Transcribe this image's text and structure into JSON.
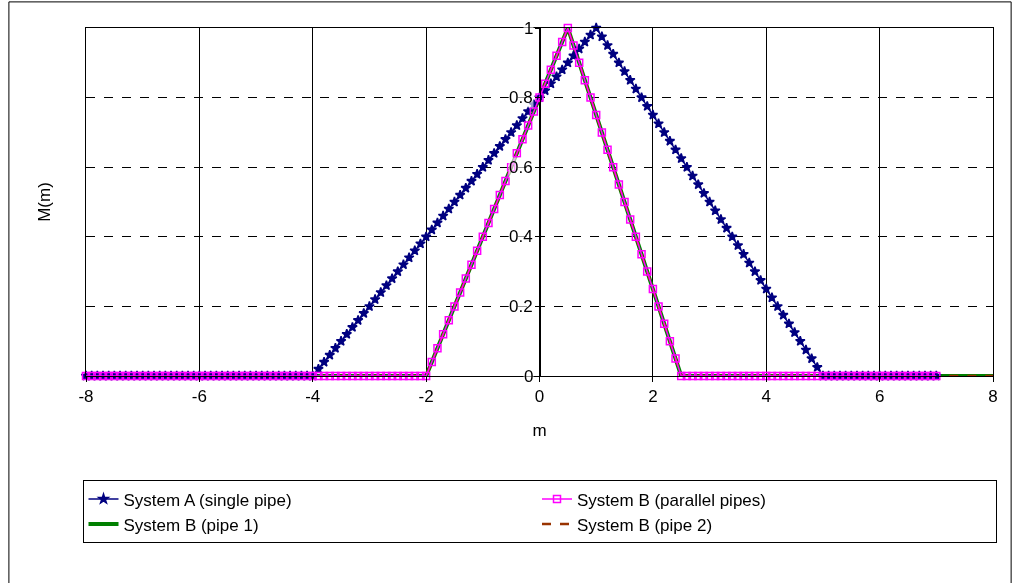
{
  "chart_data": {
    "type": "line",
    "xlabel": "m",
    "ylabel": "M(m)",
    "xlim": [
      -8,
      8
    ],
    "xticks": [
      -8,
      -6,
      -4,
      -2,
      0,
      2,
      4,
      6,
      8
    ],
    "ylim": [
      0,
      1
    ],
    "yticks": [
      0,
      0.2,
      0.4,
      0.6,
      0.8,
      1
    ],
    "grid": true,
    "legend": "bottom",
    "x": [
      -8,
      -7.9,
      -7.8,
      -7.7,
      -7.6,
      -7.5,
      -7.4,
      -7.3,
      -7.2,
      -7.1,
      -7,
      -6.9,
      -6.8,
      -6.7,
      -6.6,
      -6.5,
      -6.4,
      -6.3,
      -6.2,
      -6.1,
      -6,
      -5.9,
      -5.8,
      -5.7,
      -5.6,
      -5.5,
      -5.4,
      -5.3,
      -5.2,
      -5.1,
      -5,
      -4.9,
      -4.8,
      -4.7,
      -4.6,
      -4.5,
      -4.4,
      -4.3,
      -4.2,
      -4.1,
      -4,
      -3.9,
      -3.8,
      -3.7,
      -3.6,
      -3.5,
      -3.4,
      -3.3,
      -3.2,
      -3.1,
      -3,
      -2.9,
      -2.8,
      -2.7,
      -2.6,
      -2.5,
      -2.4,
      -2.3,
      -2.2,
      -2.1,
      -2,
      -1.9,
      -1.8,
      -1.7,
      -1.6,
      -1.5,
      -1.4,
      -1.3,
      -1.2,
      -1.1,
      -1,
      -0.9,
      -0.8,
      -0.7,
      -0.6,
      -0.5,
      -0.4,
      -0.3,
      -0.2,
      -0.1,
      0,
      0.1,
      0.2,
      0.3,
      0.4,
      0.5,
      0.6,
      0.7,
      0.8,
      0.9,
      1,
      1.1,
      1.2,
      1.3,
      1.4,
      1.5,
      1.6,
      1.7,
      1.8,
      1.9,
      2,
      2.1,
      2.2,
      2.3,
      2.4,
      2.5,
      2.6,
      2.7,
      2.8,
      2.9,
      3,
      3.1,
      3.2,
      3.3,
      3.4,
      3.5,
      3.6,
      3.7,
      3.8,
      3.9,
      4,
      4.1,
      4.2,
      4.3,
      4.4,
      4.5,
      4.6,
      4.7,
      4.8,
      4.9,
      5,
      5.1,
      5.2,
      5.3,
      5.4,
      5.5,
      5.6,
      5.7,
      5.8,
      5.9,
      6,
      6.1,
      6.2,
      6.3,
      6.4,
      6.5,
      6.6,
      6.7,
      6.8,
      6.9,
      7
    ],
    "series": [
      {
        "name": "System A (single pipe)",
        "color": "#000080",
        "marker": "star",
        "values": [
          0,
          0,
          0,
          0,
          0,
          0,
          0,
          0,
          0,
          0,
          0,
          0,
          0,
          0,
          0,
          0,
          0,
          0,
          0,
          0,
          0,
          0,
          0,
          0,
          0,
          0,
          0,
          0,
          0,
          0,
          0,
          0,
          0,
          0,
          0,
          0,
          0,
          0,
          0,
          0,
          0,
          0.02,
          0.04,
          0.06,
          0.08,
          0.1,
          0.12,
          0.14,
          0.16,
          0.18,
          0.2,
          0.22,
          0.24,
          0.26,
          0.28,
          0.3,
          0.32,
          0.34,
          0.36,
          0.38,
          0.4,
          0.42,
          0.44,
          0.46,
          0.48,
          0.5,
          0.52,
          0.54,
          0.56,
          0.58,
          0.6,
          0.62,
          0.64,
          0.66,
          0.68,
          0.7,
          0.72,
          0.74,
          0.76,
          0.78,
          0.8,
          0.82,
          0.84,
          0.86,
          0.88,
          0.9,
          0.92,
          0.94,
          0.96,
          0.98,
          1,
          0.975,
          0.95,
          0.925,
          0.9,
          0.875,
          0.85,
          0.825,
          0.8,
          0.775,
          0.75,
          0.725,
          0.7,
          0.675,
          0.65,
          0.625,
          0.6,
          0.575,
          0.55,
          0.525,
          0.5,
          0.475,
          0.45,
          0.425,
          0.4,
          0.375,
          0.35,
          0.325,
          0.3,
          0.275,
          0.25,
          0.225,
          0.2,
          0.175,
          0.15,
          0.125,
          0.1,
          0.075,
          0.05,
          0.025,
          0,
          0,
          0,
          0,
          0,
          0,
          0,
          0,
          0,
          0,
          0,
          0,
          0,
          0,
          0,
          0,
          0,
          0,
          0,
          0,
          0
        ]
      },
      {
        "name": "System B (parallel pipes)",
        "color": "#ff00ff",
        "marker": "square",
        "values": [
          0,
          0,
          0,
          0,
          0,
          0,
          0,
          0,
          0,
          0,
          0,
          0,
          0,
          0,
          0,
          0,
          0,
          0,
          0,
          0,
          0,
          0,
          0,
          0,
          0,
          0,
          0,
          0,
          0,
          0,
          0,
          0,
          0,
          0,
          0,
          0,
          0,
          0,
          0,
          0,
          0,
          0,
          0,
          0,
          0,
          0,
          0,
          0,
          0,
          0,
          0,
          0,
          0,
          0,
          0,
          0,
          0,
          0,
          0,
          0,
          0,
          0.04,
          0.08,
          0.12,
          0.16,
          0.2,
          0.24,
          0.28,
          0.32,
          0.36,
          0.4,
          0.44,
          0.48,
          0.52,
          0.56,
          0.6,
          0.64,
          0.68,
          0.72,
          0.76,
          0.8,
          0.84,
          0.88,
          0.92,
          0.96,
          1,
          0.95,
          0.9,
          0.85,
          0.8,
          0.75,
          0.7,
          0.65,
          0.6,
          0.55,
          0.5,
          0.45,
          0.4,
          0.35,
          0.3,
          0.25,
          0.2,
          0.15,
          0.1,
          0.05,
          0,
          0,
          0,
          0,
          0,
          0,
          0,
          0,
          0,
          0,
          0,
          0,
          0,
          0,
          0,
          0,
          0,
          0,
          0,
          0,
          0,
          0,
          0,
          0,
          0,
          0,
          0,
          0,
          0,
          0,
          0,
          0,
          0,
          0,
          0,
          0,
          0,
          0,
          0,
          0,
          0,
          0,
          0,
          0,
          0,
          0
        ]
      },
      {
        "name": "System B (pipe 1)",
        "color": "#008000",
        "marker": "none",
        "x": [
          -8,
          -2,
          0.5,
          2.5,
          8
        ],
        "values": [
          0,
          0,
          1,
          0,
          0
        ]
      },
      {
        "name": "System B (pipe 2)",
        "color": "#993300",
        "marker": "none",
        "line_style": "dashed",
        "x": [
          -8,
          -2,
          0.5,
          2.5,
          8
        ],
        "values": [
          0,
          0,
          1,
          0,
          0
        ]
      }
    ]
  }
}
